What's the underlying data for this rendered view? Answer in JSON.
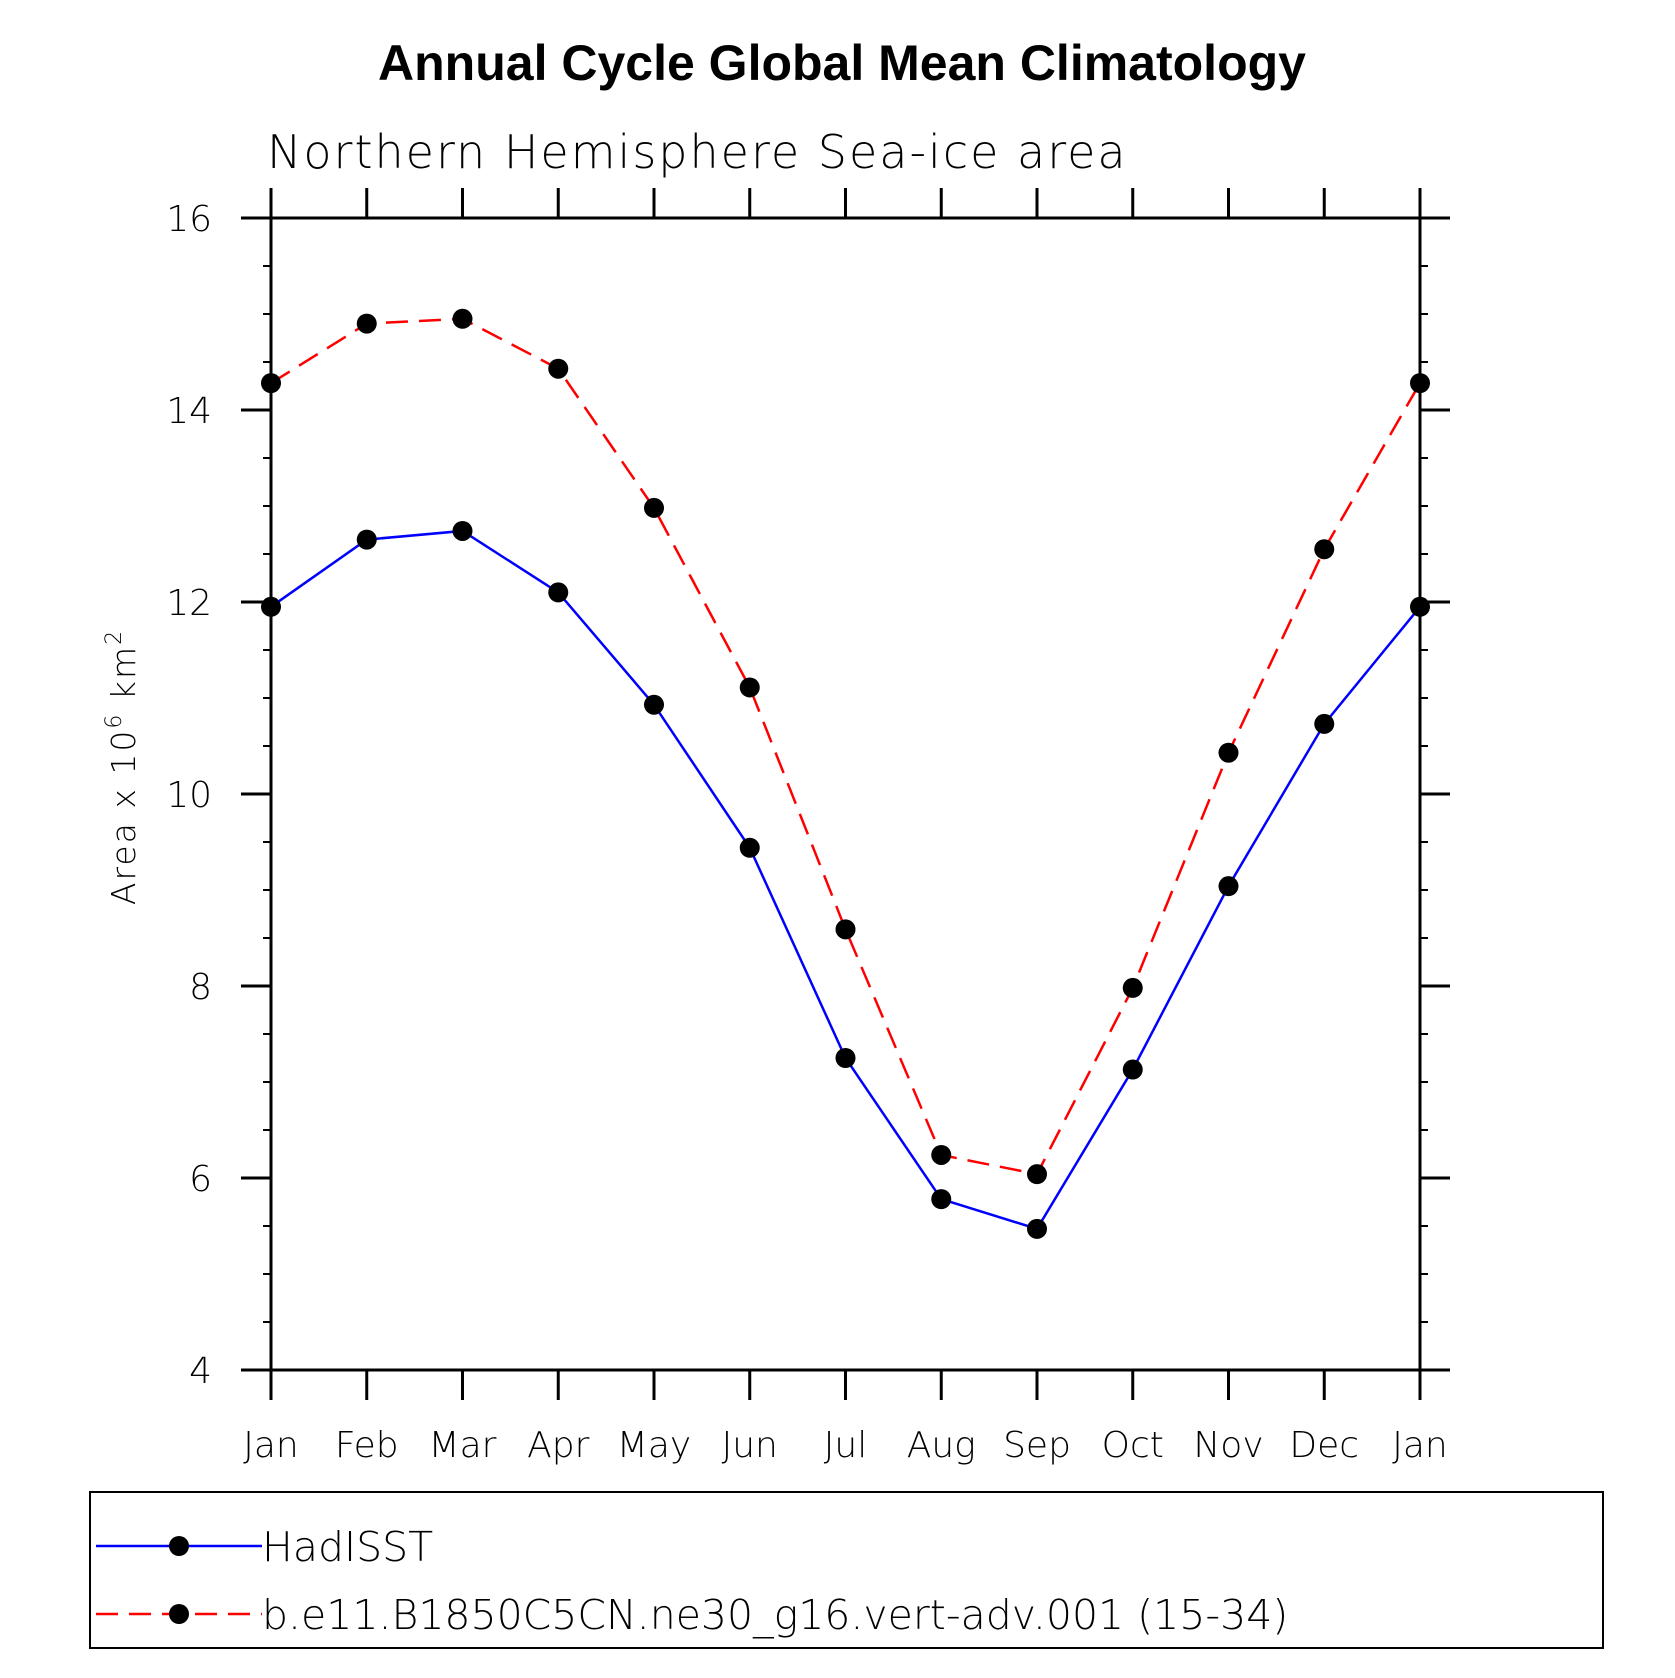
{
  "chart_data": {
    "type": "line",
    "title": "Annual Cycle Global Mean Climatology",
    "subtitle": "Northern Hemisphere Sea-ice area",
    "ylabel": "Area x 10^6 km^2",
    "ylabel_parts": {
      "pre": "Area x 10",
      "exp1": "6",
      "mid": " km",
      "exp2": "2"
    },
    "xlabel": "",
    "categories": [
      "Jan",
      "Feb",
      "Mar",
      "Apr",
      "May",
      "Jun",
      "Jul",
      "Aug",
      "Sep",
      "Oct",
      "Nov",
      "Dec",
      "Jan"
    ],
    "ylim": [
      4,
      16
    ],
    "yticks": [
      4,
      6,
      8,
      10,
      12,
      14,
      16
    ],
    "y_minor_step": 0.5,
    "grid": false,
    "legend_position": "bottom",
    "series": [
      {
        "name": "HadISST",
        "color": "#0000ff",
        "dash": "solid",
        "values": [
          11.95,
          12.65,
          12.74,
          12.1,
          10.93,
          9.44,
          7.25,
          5.78,
          5.47,
          7.13,
          9.04,
          10.73,
          11.95
        ]
      },
      {
        "name": "b.e11.B1850C5CN.ne30_g16.vert-adv.001 (15-34)",
        "color": "#ff0000",
        "dash": "dashed",
        "values": [
          14.28,
          14.9,
          14.95,
          14.43,
          12.98,
          11.11,
          8.59,
          6.24,
          6.04,
          7.98,
          10.43,
          12.55,
          14.28
        ]
      }
    ]
  }
}
